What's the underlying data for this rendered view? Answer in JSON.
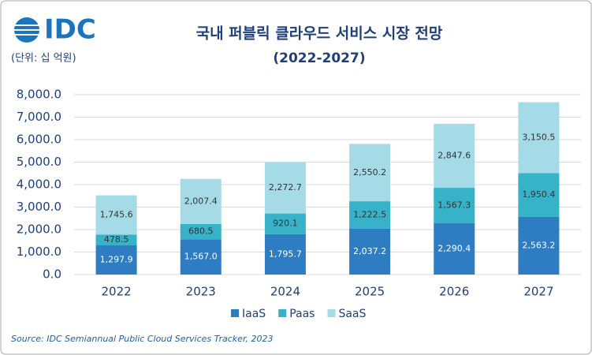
{
  "logo": "IDC",
  "unit": "(단위: 십 억원)",
  "source": "Source: IDC Semiannual Public Cloud Services Tracker, 2023",
  "chart_data": {
    "type": "stacked-bar",
    "title": "국내 퍼블릭 클라우드 서비스 시장 전망",
    "subtitle": "(2022-2027)",
    "categories": [
      "2022",
      "2023",
      "2024",
      "2025",
      "2026",
      "2027"
    ],
    "series": [
      {
        "name": "IaaS",
        "color": "#2e7cc2",
        "values": [
          1297.9,
          1567.0,
          1795.7,
          2037.2,
          2290.4,
          2563.2
        ],
        "value_labels": [
          "1,297.9",
          "1,567.0",
          "1,795.7",
          "2,037.2",
          "2,290.4",
          "2,563.2"
        ]
      },
      {
        "name": "Paas",
        "color": "#38b2c8",
        "values": [
          478.5,
          680.5,
          920.1,
          1222.5,
          1567.3,
          1950.4
        ],
        "value_labels": [
          "478.5",
          "680.5",
          "920.1",
          "1,222.5",
          "1,567.3",
          "1,950.4"
        ]
      },
      {
        "name": "SaaS",
        "color": "#a4dbe6",
        "values": [
          1745.6,
          2007.4,
          2272.7,
          2550.2,
          2847.6,
          3150.5
        ],
        "value_labels": [
          "1,745.6",
          "2,007.4",
          "2,272.7",
          "2,550.2",
          "2,847.6",
          "3,150.5"
        ]
      }
    ],
    "ylim": [
      0,
      8000
    ],
    "yticks": [
      {
        "value": 0,
        "label": "0.0"
      },
      {
        "value": 1000,
        "label": "1,000.0"
      },
      {
        "value": 2000,
        "label": "2,000.0"
      },
      {
        "value": 3000,
        "label": "3,000.0"
      },
      {
        "value": 4000,
        "label": "4,000.0"
      },
      {
        "value": 5000,
        "label": "5,000.0"
      },
      {
        "value": 6000,
        "label": "6,000.0"
      },
      {
        "value": 7000,
        "label": "7,000.0"
      },
      {
        "value": 8000,
        "label": "8,000.0"
      }
    ],
    "grid": true,
    "legend": "bottom"
  }
}
